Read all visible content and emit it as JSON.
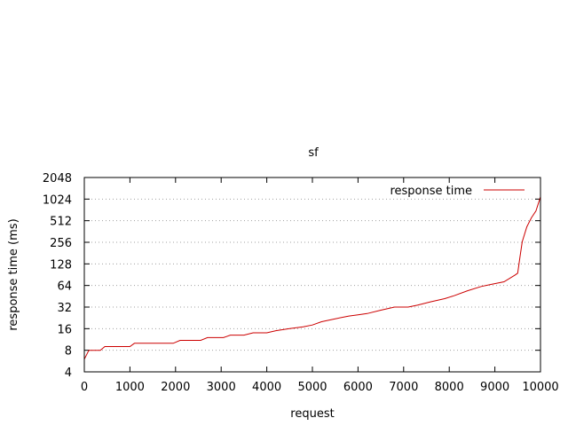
{
  "chart_data": {
    "type": "line",
    "title": "sf",
    "xlabel": "request",
    "ylabel": "response time (ms)",
    "xlim": [
      0,
      10000
    ],
    "ylim": [
      4,
      2048
    ],
    "y_scale": "log2",
    "grid": "horizontal dotted",
    "legend_position": "top-right",
    "x_ticks": [
      0,
      1000,
      2000,
      3000,
      4000,
      5000,
      6000,
      7000,
      8000,
      9000,
      10000
    ],
    "y_ticks": [
      4,
      8,
      16,
      32,
      64,
      128,
      256,
      512,
      1024,
      2048
    ],
    "series": [
      {
        "name": "response time",
        "color": "#cc0000",
        "points": [
          [
            0,
            6
          ],
          [
            100,
            8
          ],
          [
            350,
            8
          ],
          [
            450,
            9
          ],
          [
            1000,
            9
          ],
          [
            1100,
            10
          ],
          [
            1950,
            10
          ],
          [
            2100,
            11
          ],
          [
            2550,
            11
          ],
          [
            2700,
            12
          ],
          [
            3050,
            12
          ],
          [
            3200,
            13
          ],
          [
            3500,
            13
          ],
          [
            3700,
            14
          ],
          [
            4000,
            14
          ],
          [
            4200,
            15
          ],
          [
            4500,
            16
          ],
          [
            4800,
            17
          ],
          [
            5000,
            18
          ],
          [
            5200,
            20
          ],
          [
            5500,
            22
          ],
          [
            5800,
            24
          ],
          [
            6000,
            25
          ],
          [
            6200,
            26
          ],
          [
            6500,
            29
          ],
          [
            6800,
            32
          ],
          [
            7100,
            32
          ],
          [
            7300,
            34
          ],
          [
            7600,
            38
          ],
          [
            7900,
            42
          ],
          [
            8100,
            46
          ],
          [
            8400,
            54
          ],
          [
            8700,
            62
          ],
          [
            8900,
            66
          ],
          [
            9200,
            72
          ],
          [
            9450,
            90
          ],
          [
            9500,
            95
          ],
          [
            9550,
            160
          ],
          [
            9600,
            260
          ],
          [
            9700,
            420
          ],
          [
            9800,
            560
          ],
          [
            9900,
            700
          ],
          [
            10000,
            1100
          ]
        ]
      }
    ]
  }
}
